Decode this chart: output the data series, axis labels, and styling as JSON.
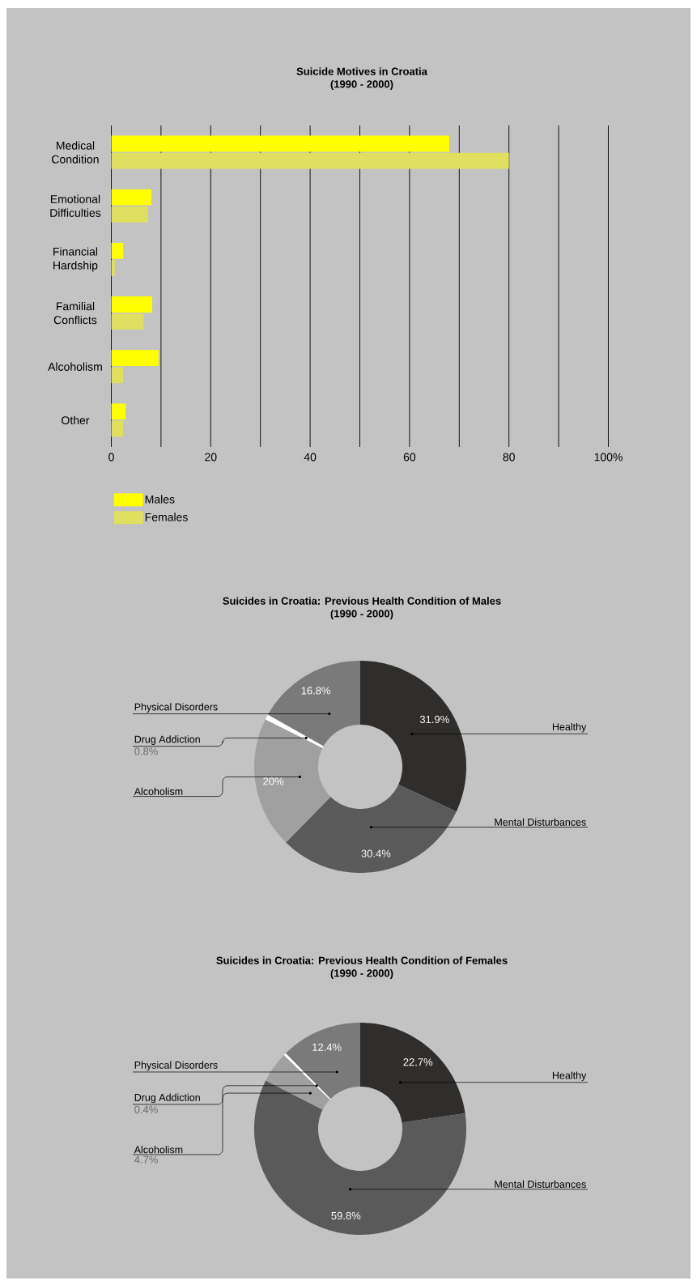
{
  "chart_data": [
    {
      "type": "bar",
      "orientation": "horizontal",
      "title": "Suicide Motives in Croatia",
      "subtitle": "(1990 - 2000)",
      "categories": [
        "Medical Condition",
        "Emotional Difficulties",
        "Financial Hardship",
        "Familial Conflicts",
        "Alcoholism",
        "Other"
      ],
      "series": [
        {
          "name": "Males",
          "color": "#ffff00",
          "values": [
            68,
            8.1,
            2.4,
            8.2,
            9.5,
            2.9
          ]
        },
        {
          "name": "Females",
          "color": "#e0e060",
          "values": [
            80,
            7.4,
            0.7,
            6.5,
            2.4,
            2.4
          ]
        }
      ],
      "xlim": [
        0,
        100
      ],
      "xticks": [
        0,
        {
          "value": 10,
          "label": null
        },
        20,
        {
          "value": 30,
          "label": null
        },
        40,
        {
          "value": 50,
          "label": null
        },
        60,
        {
          "value": 70,
          "label": null
        },
        80,
        {
          "value": 90,
          "label": null
        },
        {
          "value": 100,
          "label": "100%"
        }
      ],
      "grid": "x",
      "legend": "bottom"
    },
    {
      "type": "donut",
      "title": "Suicides in Croatia: Previous Health Condition of Males",
      "subtitle": "(1990 - 2000)",
      "categories": [
        "Healthy",
        "Mental Disturbances",
        "Alcoholism",
        "Drug Addiction",
        "Physical Disorders"
      ],
      "values": [
        31.9,
        30.4,
        20,
        0.8,
        16.8
      ],
      "value_labels": [
        "31.9%",
        "30.4%",
        "20%",
        "0.8%",
        "16.8%"
      ],
      "colors": [
        "#302e2c",
        "#5a5a5a",
        "#a0a0a0",
        "#ffffff",
        "#7a7a7a"
      ]
    },
    {
      "type": "donut",
      "title": "Suicides in Croatia: Previous Health Condition of Females",
      "subtitle": "(1990 - 2000)",
      "categories": [
        "Healthy",
        "Mental Disturbances",
        "Alcoholism",
        "Drug Addiction",
        "Physical Disorders"
      ],
      "values": [
        22.7,
        59.8,
        4.7,
        0.4,
        12.4
      ],
      "value_labels": [
        "22.7%",
        "59.8%",
        "4.7%",
        "0.4%",
        "12.4%"
      ],
      "colors": [
        "#302e2c",
        "#5a5a5a",
        "#a0a0a0",
        "#ffffff",
        "#7a7a7a"
      ]
    }
  ]
}
